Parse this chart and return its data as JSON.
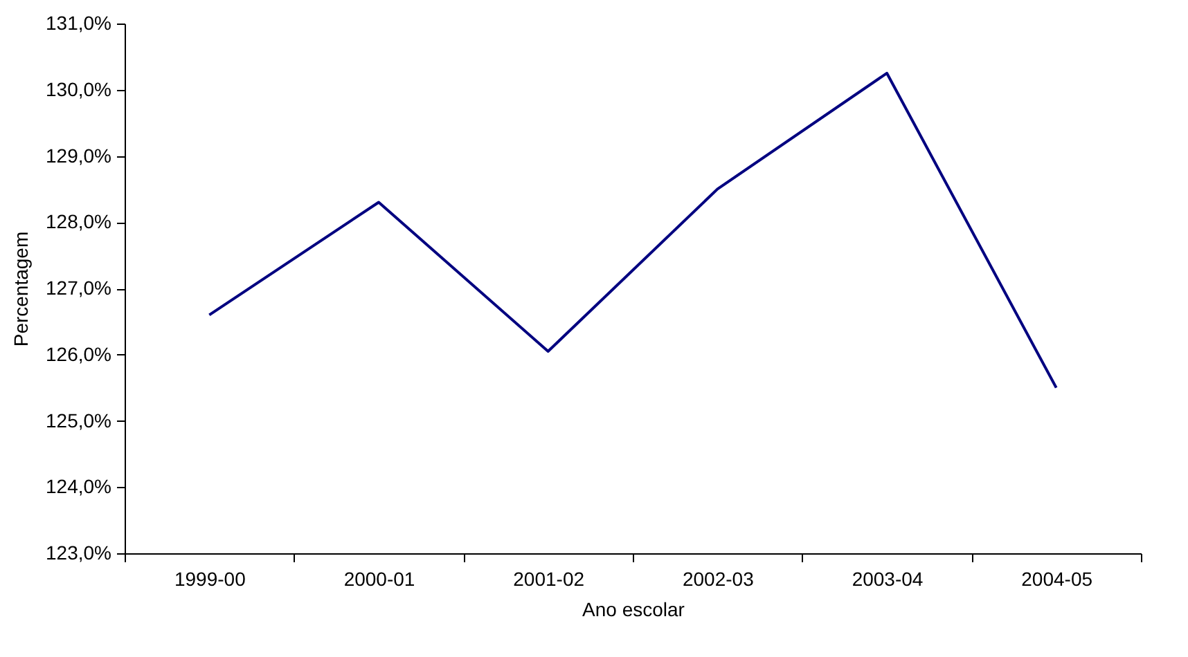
{
  "chart_data": {
    "type": "line",
    "xlabel": "Ano escolar",
    "ylabel": "Percentagem",
    "categories": [
      "1999-00",
      "2000-01",
      "2001-02",
      "2002-03",
      "2003-04",
      "2004-05"
    ],
    "series": [
      {
        "color": "#000080",
        "values": [
          126.6,
          128.3,
          126.05,
          128.5,
          130.25,
          125.5
        ]
      }
    ],
    "ylim": [
      123,
      131
    ],
    "yticks": [
      {
        "value": 123,
        "label": "123,0%"
      },
      {
        "value": 124,
        "label": "124,0%"
      },
      {
        "value": 125,
        "label": "125,0%"
      },
      {
        "value": 126,
        "label": "126,0%"
      },
      {
        "value": 127,
        "label": "127,0%"
      },
      {
        "value": 128,
        "label": "128,0%"
      },
      {
        "value": 129,
        "label": "129,0%"
      },
      {
        "value": 130,
        "label": "130,0%"
      },
      {
        "value": 131,
        "label": "131,0%"
      }
    ],
    "grid": false,
    "marker": "none",
    "line_style": "solid"
  }
}
